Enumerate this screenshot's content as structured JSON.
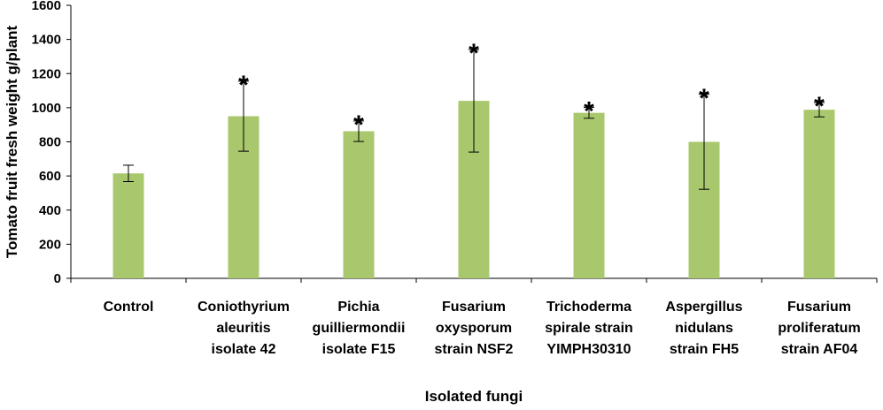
{
  "chart_data": {
    "type": "bar",
    "categories": [
      [
        "Control"
      ],
      [
        "Coniothyrium",
        "aleuritis",
        "isolate 42"
      ],
      [
        "Pichia",
        "guilliermondii",
        "isolate F15"
      ],
      [
        "Fusarium",
        "oxysporum",
        "strain NSF2"
      ],
      [
        "Trichoderma",
        "spirale strain",
        "YIMPH30310"
      ],
      [
        "Aspergillus",
        "nidulans",
        "strain FH5"
      ],
      [
        "Fusarium",
        "proliferatum",
        "strain AF04"
      ]
    ],
    "values": [
      615,
      950,
      862,
      1040,
      970,
      800,
      988
    ],
    "error": [
      48,
      205,
      60,
      300,
      32,
      278,
      42
    ],
    "significance": [
      "",
      "*",
      "*",
      "*",
      "*",
      "*",
      "*"
    ],
    "ylabel": "Tomato fruit fresh weight g/plant",
    "xlabel": "Isolated fungi",
    "ylim": [
      0,
      1600
    ],
    "yticks": [
      0,
      200,
      400,
      600,
      800,
      1000,
      1200,
      1400,
      1600
    ],
    "grid": false,
    "legend": "none",
    "bar_color": "#a9c86d"
  }
}
